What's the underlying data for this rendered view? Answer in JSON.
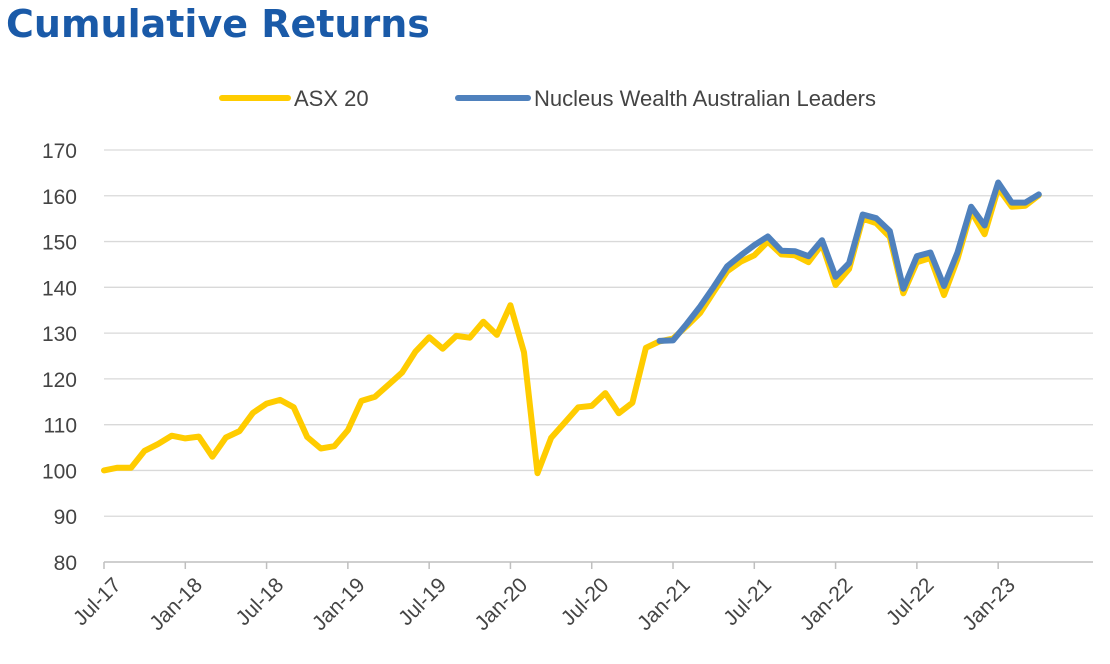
{
  "chart_data": {
    "type": "line",
    "title": "Cumulative Returns",
    "xlabel": "",
    "ylabel": "",
    "ylim": [
      80,
      170
    ],
    "yticks": [
      80,
      90,
      100,
      110,
      120,
      130,
      140,
      150,
      160,
      170
    ],
    "x_tick_labels": [
      "Jul-17",
      "Jan-18",
      "Jul-18",
      "Jan-19",
      "Jul-19",
      "Jan-20",
      "Jul-20",
      "Jan-21",
      "Jul-21",
      "Jan-22",
      "Jul-22",
      "Jan-23"
    ],
    "x_start": "Jul-17",
    "x_end": "Aug-23",
    "grid": "horizontal",
    "legend_position": "top",
    "series": [
      {
        "name": "ASX 20",
        "color": "#ffcc00",
        "points": [
          [
            "Jul-17",
            100.0
          ],
          [
            "Aug-17",
            100.6
          ],
          [
            "Sep-17",
            100.6
          ],
          [
            "Oct-17",
            104.3
          ],
          [
            "Nov-17",
            105.8
          ],
          [
            "Dec-17",
            107.6
          ],
          [
            "Jan-18",
            107.0
          ],
          [
            "Feb-18",
            107.4
          ],
          [
            "Mar-18",
            103.0
          ],
          [
            "Apr-18",
            107.2
          ],
          [
            "May-18",
            108.6
          ],
          [
            "Jun-18",
            112.6
          ],
          [
            "Jul-18",
            114.6
          ],
          [
            "Aug-18",
            115.4
          ],
          [
            "Sep-18",
            113.8
          ],
          [
            "Oct-18",
            107.3
          ],
          [
            "Nov-18",
            104.8
          ],
          [
            "Dec-18",
            105.3
          ],
          [
            "Jan-19",
            108.8
          ],
          [
            "Feb-19",
            115.2
          ],
          [
            "Mar-19",
            116.1
          ],
          [
            "Apr-19",
            118.7
          ],
          [
            "May-19",
            121.4
          ],
          [
            "Jun-19",
            126.0
          ],
          [
            "Jul-19",
            129.1
          ],
          [
            "Aug-19",
            126.6
          ],
          [
            "Sep-19",
            129.4
          ],
          [
            "Oct-19",
            129.0
          ],
          [
            "Nov-19",
            132.5
          ],
          [
            "Dec-19",
            129.6
          ],
          [
            "Jan-20",
            136.1
          ],
          [
            "Feb-20",
            125.8
          ],
          [
            "Mar-20",
            99.4
          ],
          [
            "Apr-20",
            107.1
          ],
          [
            "May-20",
            110.4
          ],
          [
            "Jun-20",
            113.8
          ],
          [
            "Jul-20",
            114.1
          ],
          [
            "Aug-20",
            116.9
          ],
          [
            "Sep-20",
            112.5
          ],
          [
            "Oct-20",
            114.8
          ],
          [
            "Nov-20",
            126.8
          ],
          [
            "Dec-20",
            128.2
          ],
          [
            "Jan-21",
            128.8
          ],
          [
            "Feb-21",
            131.5
          ],
          [
            "Mar-21",
            134.4
          ],
          [
            "Apr-21",
            139.0
          ],
          [
            "May-21",
            143.5
          ],
          [
            "Jun-21",
            145.6
          ],
          [
            "Jul-21",
            147.0
          ],
          [
            "Aug-21",
            150.0
          ],
          [
            "Sep-21",
            147.2
          ],
          [
            "Oct-21",
            147.0
          ],
          [
            "Nov-21",
            145.5
          ],
          [
            "Dec-21",
            149.4
          ],
          [
            "Jan-22",
            140.5
          ],
          [
            "Feb-22",
            144.0
          ],
          [
            "Mar-22",
            155.0
          ],
          [
            "Apr-22",
            154.0
          ],
          [
            "May-22",
            151.0
          ],
          [
            "Jun-22",
            138.7
          ],
          [
            "Jul-22",
            145.5
          ],
          [
            "Aug-22",
            146.4
          ],
          [
            "Sep-22",
            138.3
          ],
          [
            "Oct-22",
            146.2
          ],
          [
            "Nov-22",
            156.6
          ],
          [
            "Dec-22",
            151.6
          ],
          [
            "Jan-23",
            161.7
          ],
          [
            "Feb-23",
            157.6
          ],
          [
            "Mar-23",
            157.8
          ],
          [
            "Apr-23",
            160.1
          ]
        ]
      },
      {
        "name": "Nucleus Wealth Australian Leaders",
        "color": "#4f81bd",
        "points": [
          [
            "Dec-20",
            128.3
          ],
          [
            "Jan-21",
            128.4
          ],
          [
            "Feb-21",
            132.0
          ],
          [
            "Mar-21",
            135.8
          ],
          [
            "Apr-21",
            140.1
          ],
          [
            "May-21",
            144.6
          ],
          [
            "Jun-21",
            147.0
          ],
          [
            "Jul-21",
            149.2
          ],
          [
            "Aug-21",
            151.1
          ],
          [
            "Sep-21",
            148.0
          ],
          [
            "Oct-21",
            147.9
          ],
          [
            "Nov-21",
            146.8
          ],
          [
            "Dec-21",
            150.3
          ],
          [
            "Jan-22",
            142.3
          ],
          [
            "Feb-22",
            145.3
          ],
          [
            "Mar-22",
            155.9
          ],
          [
            "Apr-22",
            155.1
          ],
          [
            "May-22",
            152.3
          ],
          [
            "Jun-22",
            139.7
          ],
          [
            "Jul-22",
            146.8
          ],
          [
            "Aug-22",
            147.6
          ],
          [
            "Sep-22",
            140.3
          ],
          [
            "Oct-22",
            147.6
          ],
          [
            "Nov-22",
            157.6
          ],
          [
            "Dec-22",
            153.5
          ],
          [
            "Jan-23",
            162.9
          ],
          [
            "Feb-23",
            158.5
          ],
          [
            "Mar-23",
            158.5
          ],
          [
            "Apr-23",
            160.3
          ]
        ]
      }
    ]
  }
}
